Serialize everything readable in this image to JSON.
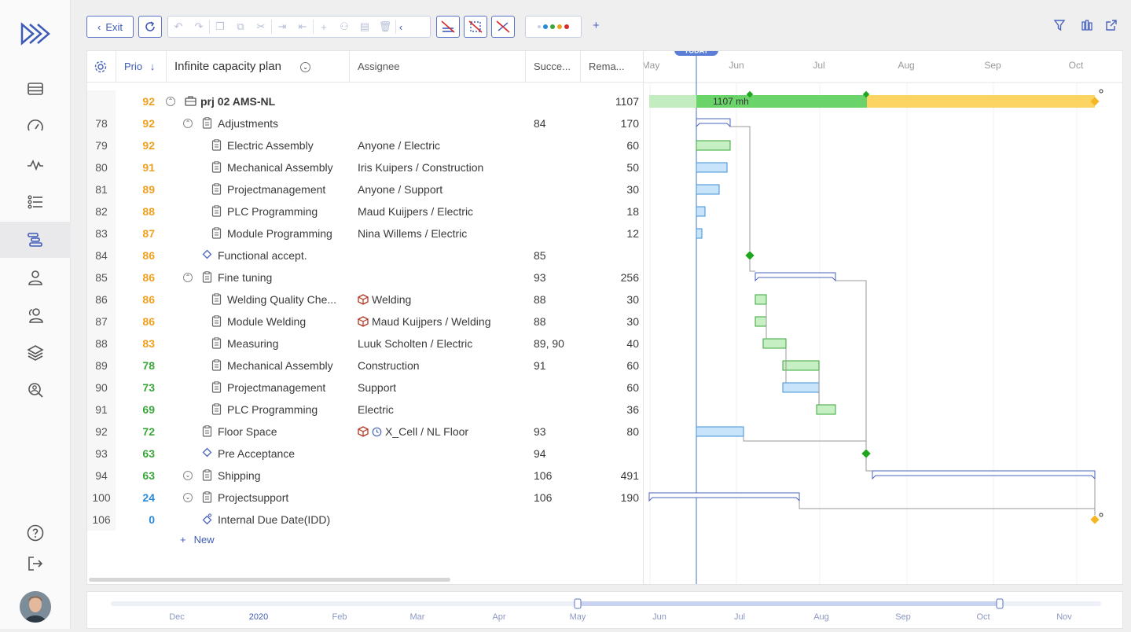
{
  "nav": {
    "items": [
      "list-icon",
      "dashboard-icon",
      "activity-icon",
      "tasks-icon",
      "gantt-icon",
      "user-icon",
      "users-icon",
      "layers-icon",
      "search-user-icon"
    ],
    "bottom": [
      "help-icon",
      "logout-icon"
    ]
  },
  "toolbar": {
    "exit_label": "Exit",
    "add": "+"
  },
  "grid": {
    "headers": {
      "prio": "Prio",
      "sort": "↓",
      "plan": "Infinite capacity plan",
      "assignee": "Assignee",
      "successors": "Succe...",
      "remaining": "Rema..."
    },
    "rows": [
      {
        "num": "",
        "prio": "92",
        "prio_color": "#f0a020",
        "name": "prj 02 AMS-NL",
        "type": "project",
        "level": 0,
        "toggle": "up",
        "assignee": "",
        "succ": "",
        "rem": "1107",
        "bold": true
      },
      {
        "num": "78",
        "prio": "92",
        "prio_color": "#f0a020",
        "name": "Adjustments",
        "type": "group",
        "level": 1,
        "toggle": "up",
        "assignee": "",
        "succ": "84",
        "rem": "170"
      },
      {
        "num": "79",
        "prio": "92",
        "prio_color": "#f0a020",
        "name": "Electric Assembly",
        "type": "task",
        "level": 2,
        "assignee": "Anyone / Electric",
        "succ": "",
        "rem": "60"
      },
      {
        "num": "80",
        "prio": "91",
        "prio_color": "#f0a020",
        "name": "Mechanical Assembly",
        "type": "task",
        "level": 2,
        "assignee": "Iris Kuipers / Construction",
        "succ": "",
        "rem": "50"
      },
      {
        "num": "81",
        "prio": "89",
        "prio_color": "#f0a020",
        "name": "Projectmanagement",
        "type": "task",
        "level": 2,
        "assignee": "Anyone / Support",
        "succ": "",
        "rem": "30"
      },
      {
        "num": "82",
        "prio": "88",
        "prio_color": "#f0a020",
        "name": "PLC Programming",
        "type": "task",
        "level": 2,
        "assignee": "Maud Kuijpers / Electric",
        "succ": "",
        "rem": "18"
      },
      {
        "num": "83",
        "prio": "87",
        "prio_color": "#f0a020",
        "name": "Module Programming",
        "type": "task",
        "level": 2,
        "assignee": "Nina Willems / Electric",
        "succ": "",
        "rem": "12"
      },
      {
        "num": "84",
        "prio": "86",
        "prio_color": "#f0a020",
        "name": "Functional accept.",
        "type": "milestone",
        "level": 1,
        "assignee": "",
        "succ": "85",
        "rem": ""
      },
      {
        "num": "85",
        "prio": "86",
        "prio_color": "#f0a020",
        "name": "Fine tuning",
        "type": "group",
        "level": 1,
        "toggle": "up",
        "assignee": "",
        "succ": "93",
        "rem": "256"
      },
      {
        "num": "86",
        "prio": "86",
        "prio_color": "#f0a020",
        "name": "Welding Quality Che...",
        "type": "task",
        "level": 2,
        "assignee": "Welding",
        "resource": true,
        "succ": "88",
        "rem": "30"
      },
      {
        "num": "87",
        "prio": "86",
        "prio_color": "#f0a020",
        "name": "Module Welding",
        "type": "task",
        "level": 2,
        "assignee": "Maud Kuijpers / Welding",
        "resource": true,
        "succ": "88",
        "rem": "30"
      },
      {
        "num": "88",
        "prio": "83",
        "prio_color": "#f0a020",
        "name": "Measuring",
        "type": "task",
        "level": 2,
        "assignee": "Luuk Scholten / Electric",
        "succ": "89, 90",
        "rem": "40"
      },
      {
        "num": "89",
        "prio": "78",
        "prio_color": "#3aa63a",
        "name": "Mechanical Assembly",
        "type": "task",
        "level": 2,
        "assignee": "Construction",
        "succ": "91",
        "rem": "60"
      },
      {
        "num": "90",
        "prio": "73",
        "prio_color": "#3aa63a",
        "name": "Projectmanagement",
        "type": "task",
        "level": 2,
        "assignee": "Support",
        "succ": "",
        "rem": "60"
      },
      {
        "num": "91",
        "prio": "69",
        "prio_color": "#3aa63a",
        "name": "PLC Programming",
        "type": "task",
        "level": 2,
        "assignee": "Electric",
        "succ": "",
        "rem": "36"
      },
      {
        "num": "92",
        "prio": "72",
        "prio_color": "#3aa63a",
        "name": "Floor Space",
        "type": "group",
        "level": 1,
        "assignee": "X_Cell / NL Floor",
        "resource": true,
        "clock": true,
        "succ": "93",
        "rem": "80"
      },
      {
        "num": "93",
        "prio": "63",
        "prio_color": "#3aa63a",
        "name": "Pre Acceptance",
        "type": "milestone",
        "level": 1,
        "assignee": "",
        "succ": "94",
        "rem": ""
      },
      {
        "num": "94",
        "prio": "63",
        "prio_color": "#3aa63a",
        "name": "Shipping",
        "type": "group",
        "level": 1,
        "toggle": "down",
        "assignee": "",
        "succ": "106",
        "rem": "491"
      },
      {
        "num": "100",
        "prio": "24",
        "prio_color": "#2a8ad8",
        "name": "Projectsupport",
        "type": "group",
        "level": 1,
        "toggle": "down",
        "assignee": "",
        "succ": "106",
        "rem": "190"
      },
      {
        "num": "106",
        "prio": "0",
        "prio_color": "#2a8ad8",
        "name": "Internal Due Date(IDD)",
        "type": "due",
        "level": 1,
        "assignee": "",
        "succ": "",
        "rem": ""
      }
    ],
    "new_label": "New"
  },
  "gantt": {
    "today_label": "TODAY",
    "months": [
      "May",
      "Jun",
      "Jul",
      "Aug",
      "Sep",
      "Oct"
    ],
    "summary_label": "1107 mh"
  },
  "timeline": {
    "labels": [
      "Dec",
      "2020",
      "Feb",
      "Mar",
      "Apr",
      "May",
      "Jun",
      "Jul",
      "Aug",
      "Sep",
      "Oct",
      "Nov"
    ]
  }
}
